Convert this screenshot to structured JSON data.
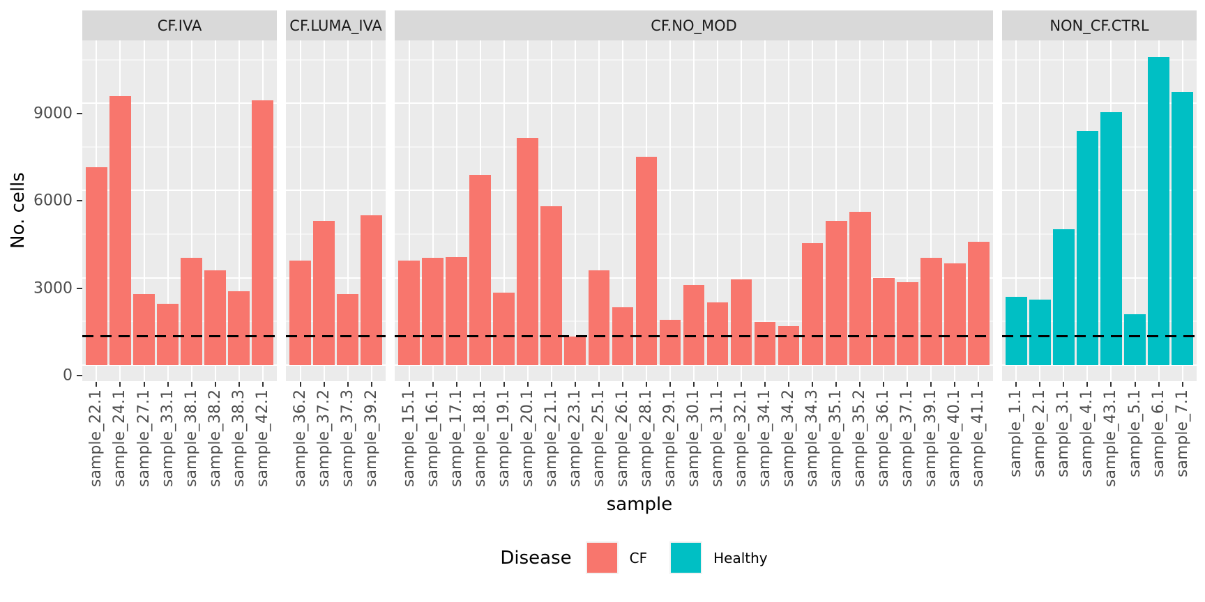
{
  "figure": {
    "background": "#FFFFFF",
    "panel_bg": "#EBEBEB",
    "strip_bg": "#D9D9D9",
    "grid_color": "#FFFFFF",
    "tick_label_color": "#4D4D4D"
  },
  "legend": {
    "title": "Disease",
    "entries": [
      {
        "label": "CF",
        "color": "#F8766D"
      },
      {
        "label": "Healthy",
        "color": "#00BFC4"
      }
    ]
  },
  "chart_data": {
    "type": "bar",
    "title": "",
    "xlabel": "sample",
    "ylabel": "No. cells",
    "y_ticks": [
      0,
      3000,
      6000,
      9000
    ],
    "y_minor_ticks": [
      1500,
      4500,
      7500,
      10500
    ],
    "ylim": [
      -550,
      11160
    ],
    "grid": true,
    "legend_position": "bottom",
    "hline": {
      "value": 1000,
      "style": "dashed",
      "color": "#000000"
    },
    "facets": [
      {
        "label": "CF.IVA",
        "group": "CF",
        "samples": [
          "sample_22.1",
          "sample_24.1",
          "sample_27.1",
          "sample_33.1",
          "sample_38.1",
          "sample_38.2",
          "sample_38.3",
          "sample_42.1"
        ],
        "values": [
          6800,
          9250,
          2450,
          2100,
          3700,
          3250,
          2550,
          9100
        ]
      },
      {
        "label": "CF.LUMA_IVA",
        "group": "CF",
        "samples": [
          "sample_36.2",
          "sample_37.2",
          "sample_37.3",
          "sample_39.2"
        ],
        "values": [
          3600,
          4950,
          2450,
          5150
        ]
      },
      {
        "label": "CF.NO_MOD",
        "group": "CF",
        "samples": [
          "sample_15.1",
          "sample_16.1",
          "sample_17.1",
          "sample_18.1",
          "sample_19.1",
          "sample_20.1",
          "sample_21.1",
          "sample_23.1",
          "sample_25.1",
          "sample_26.1",
          "sample_28.1",
          "sample_29.1",
          "sample_30.1",
          "sample_31.1",
          "sample_32.1",
          "sample_34.1",
          "sample_34.2",
          "sample_34.3",
          "sample_35.1",
          "sample_35.2",
          "sample_36.1",
          "sample_37.1",
          "sample_39.1",
          "sample_40.1",
          "sample_41.1"
        ],
        "values": [
          3600,
          3680,
          3720,
          6550,
          2500,
          7800,
          5450,
          990,
          3250,
          2000,
          7150,
          1550,
          2750,
          2150,
          2950,
          1480,
          1350,
          4200,
          4950,
          5270,
          3000,
          2850,
          3700,
          3500,
          4250
        ]
      },
      {
        "label": "NON_CF.CTRL",
        "group": "Healthy",
        "samples": [
          "sample_1.1",
          "sample_2.1",
          "sample_3.1",
          "sample_4.1",
          "sample_43.1",
          "sample_5.1",
          "sample_6.1",
          "sample_7.1"
        ],
        "values": [
          2350,
          2250,
          4670,
          8050,
          8700,
          1750,
          10580,
          9400
        ]
      }
    ]
  }
}
